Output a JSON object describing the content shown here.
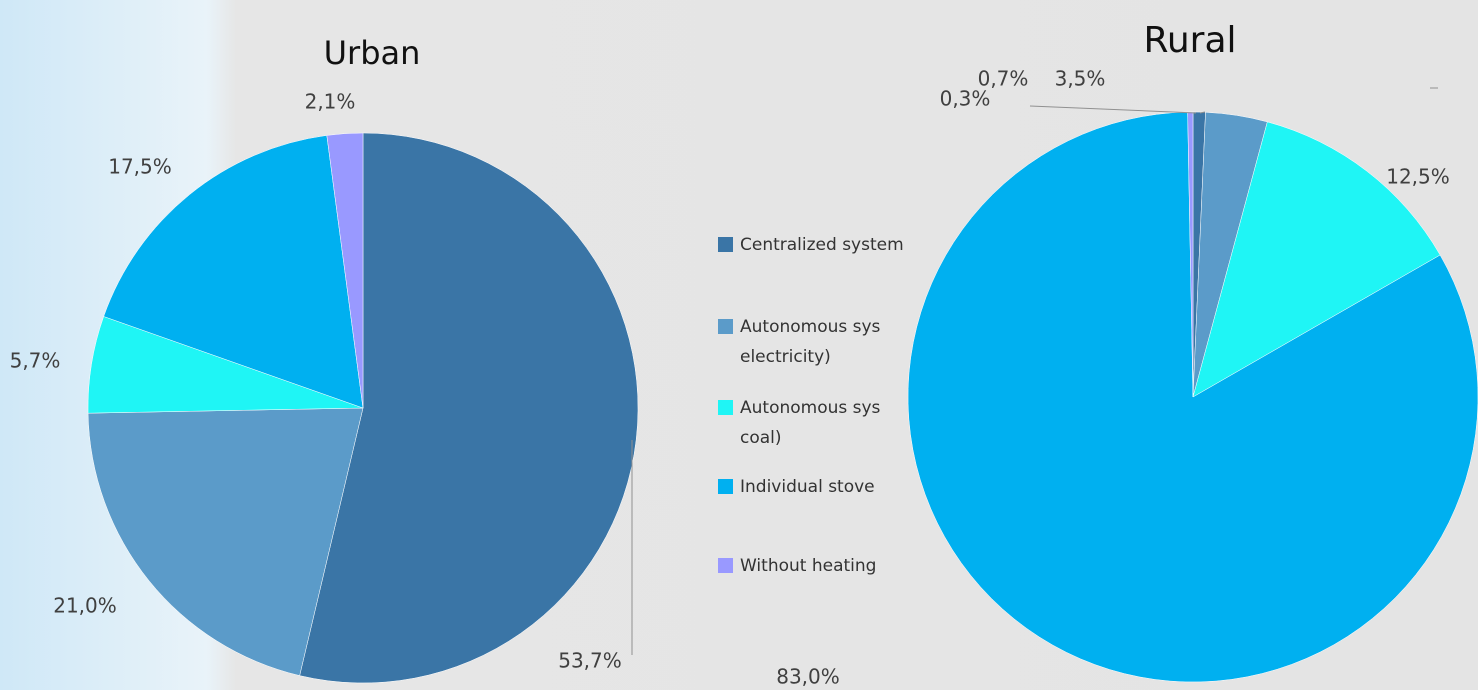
{
  "chart_data": [
    {
      "type": "pie",
      "title": "Urban",
      "categories": [
        "Centralized system",
        [
          "Autonomous sys",
          "electricity)"
        ],
        [
          "Autonomous sys",
          "coal)"
        ],
        "Individual stove",
        "Without heating"
      ],
      "values": [
        53.7,
        21.0,
        5.7,
        17.5,
        2.1
      ],
      "value_labels": [
        "53,7%",
        "21,0%",
        "5,7%",
        "17,5%",
        "2,1%"
      ],
      "colors": [
        "#3a75a6",
        "#5b9bc9",
        "#1ff5f5",
        "#00b0f0",
        "#9999ff"
      ]
    },
    {
      "type": "pie",
      "title": "Rural",
      "categories": [
        "Centralized system",
        [
          "Autonomous sys",
          "electricity)"
        ],
        [
          "Autonomous sys",
          "coal)"
        ],
        "Individual stove",
        "Without heating"
      ],
      "values": [
        0.7,
        3.5,
        12.5,
        83.0,
        0.3
      ],
      "value_labels": [
        "0,7%",
        "3,5%",
        "12,5%",
        "83,0%",
        "0,3%"
      ],
      "colors": [
        "#3a75a6",
        "#5b9bc9",
        "#1ff5f5",
        "#00b0f0",
        "#9999ff"
      ]
    }
  ]
}
